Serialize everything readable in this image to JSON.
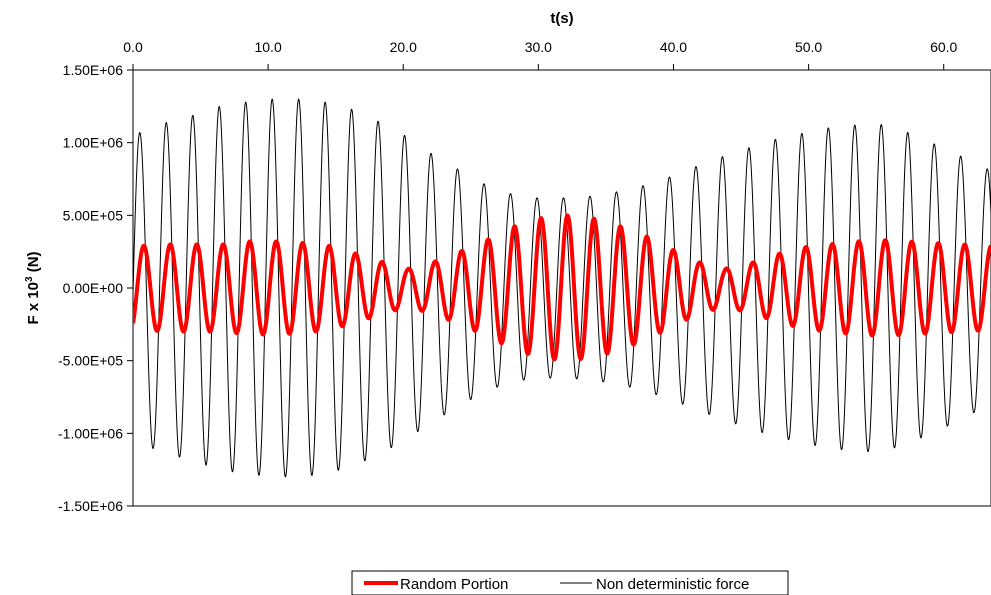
{
  "chart_data": {
    "type": "line",
    "xlabel": "t(s)",
    "ylabel": "F x 10",
    "ylabel_superscript": "3",
    "ylabel_unit": " (N)",
    "x_axis_position": "top",
    "xlim": [
      0,
      63.5
    ],
    "ylim": [
      -1500000,
      1500000
    ],
    "x_ticks": [
      {
        "value": 0,
        "label": "0.0"
      },
      {
        "value": 10,
        "label": "10.0"
      },
      {
        "value": 20,
        "label": "20.0"
      },
      {
        "value": 30,
        "label": "30.0"
      },
      {
        "value": 40,
        "label": "40.0"
      },
      {
        "value": 50,
        "label": "50.0"
      },
      {
        "value": 60,
        "label": "60.0"
      }
    ],
    "y_ticks": [
      {
        "value": 1500000,
        "label": "1.50E+06"
      },
      {
        "value": 1000000,
        "label": "1.00E+06"
      },
      {
        "value": 500000,
        "label": "5.00E+05"
      },
      {
        "value": 0,
        "label": "0.00E+00"
      },
      {
        "value": -500000,
        "label": "-5.00E+05"
      },
      {
        "value": -1000000,
        "label": "-1.00E+06"
      },
      {
        "value": -1500000,
        "label": "-1.50E+06"
      }
    ],
    "grid": false,
    "legend_position": "bottom",
    "series": [
      {
        "name": "Random Portion",
        "color": "#ff0000",
        "style": "thick",
        "period": 1.96,
        "phase_deg": -90,
        "peaks": {
          "t": [
            0.8,
            2.8,
            4.8,
            6.7,
            8.6,
            10.6,
            12.5,
            14.5,
            16.4,
            18.4,
            20.3,
            22.3,
            24.2,
            26.2,
            28.1,
            30.1,
            32.0,
            34.0,
            35.9,
            37.9,
            39.8,
            41.8,
            43.7,
            45.7,
            47.6,
            49.6,
            51.5,
            53.5,
            55.4,
            57.4,
            59.3,
            61.3,
            63.2
          ],
          "amplitude": [
            290000,
            300000,
            300000,
            300000,
            320000,
            320000,
            310000,
            290000,
            240000,
            180000,
            130000,
            180000,
            250000,
            330000,
            420000,
            480000,
            500000,
            480000,
            430000,
            360000,
            270000,
            180000,
            130000,
            170000,
            230000,
            280000,
            300000,
            320000,
            330000,
            320000,
            310000,
            300000,
            290000
          ]
        }
      },
      {
        "name": "Non deterministic force",
        "color": "#000000",
        "style": "thin",
        "period": 1.96,
        "phase_deg": 0,
        "peaks": {
          "t": [
            0.5,
            2.5,
            4.5,
            6.4,
            8.4,
            10.3,
            12.3,
            14.2,
            16.2,
            18.1,
            20.1,
            22.0,
            24.0,
            25.9,
            27.9,
            29.8,
            31.8,
            33.7,
            35.7,
            37.6,
            39.6,
            41.5,
            43.5,
            45.4,
            47.4,
            49.3,
            51.3,
            53.2,
            55.2,
            57.1,
            59.1,
            61.0,
            63.0
          ],
          "amplitude": [
            1070000,
            1140000,
            1190000,
            1250000,
            1280000,
            1300000,
            1300000,
            1280000,
            1230000,
            1150000,
            1050000,
            930000,
            820000,
            720000,
            650000,
            620000,
            620000,
            630000,
            660000,
            700000,
            760000,
            830000,
            900000,
            960000,
            1020000,
            1060000,
            1100000,
            1120000,
            1130000,
            1080000,
            1000000,
            920000,
            820000
          ]
        }
      }
    ]
  }
}
